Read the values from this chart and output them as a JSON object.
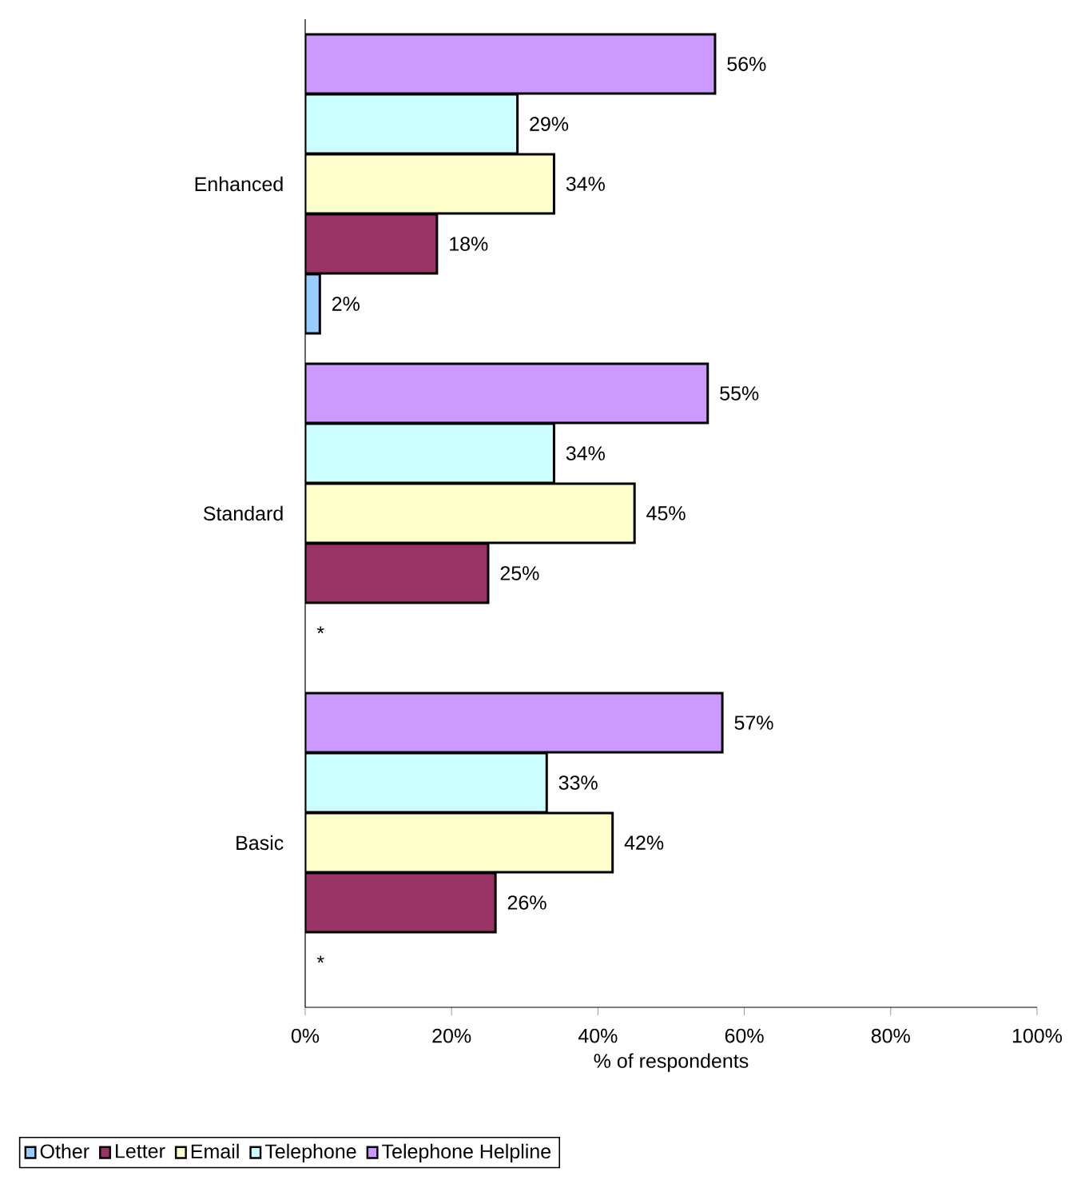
{
  "chart_data": {
    "type": "bar",
    "orientation": "horizontal",
    "xlabel": "% of respondents",
    "categories": [
      "Enhanced",
      "Standard",
      "Basic"
    ],
    "series": [
      {
        "name": "Other",
        "color": "#99ccff",
        "values": [
          2,
          null,
          null
        ],
        "value_labels": [
          "2%",
          "*",
          "*"
        ]
      },
      {
        "name": "Letter",
        "color": "#993366",
        "values": [
          18,
          25,
          26
        ],
        "value_labels": [
          "18%",
          "25%",
          "26%"
        ]
      },
      {
        "name": "Email",
        "color": "#ffffcc",
        "values": [
          34,
          45,
          42
        ],
        "value_labels": [
          "34%",
          "45%",
          "42%"
        ]
      },
      {
        "name": "Telephone",
        "color": "#ccffff",
        "values": [
          29,
          34,
          33
        ],
        "value_labels": [
          "29%",
          "34%",
          "33%"
        ]
      },
      {
        "name": "Telephone Helpline",
        "color": "#cc99ff",
        "values": [
          56,
          55,
          57
        ],
        "value_labels": [
          "56%",
          "55%",
          "57%"
        ]
      }
    ],
    "xlim": [
      0,
      100
    ],
    "xticks": [
      {
        "value": 0,
        "label": "0%"
      },
      {
        "value": 20,
        "label": "20%"
      },
      {
        "value": 40,
        "label": "40%"
      },
      {
        "value": 60,
        "label": "60%"
      },
      {
        "value": 80,
        "label": "80%"
      },
      {
        "value": 100,
        "label": "100%"
      }
    ],
    "grid": false,
    "legend": "bottom"
  }
}
